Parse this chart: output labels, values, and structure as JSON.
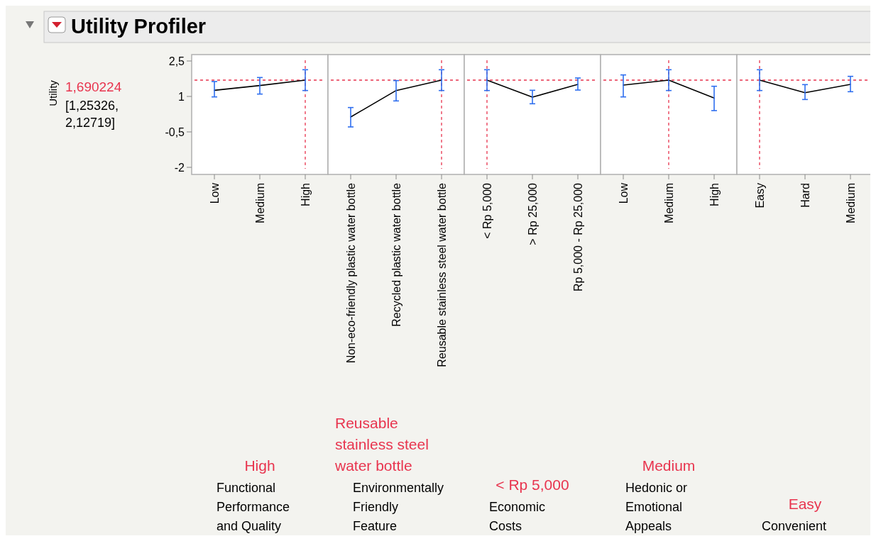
{
  "chart_data": [
    {
      "type": "line",
      "title": "Utility Profiler",
      "ylabel": "Utility",
      "xlabel": "Functional Performance and Quality",
      "annotations": [
        "[1,25326, 2,12719]"
      ],
      "categories": [
        "Low",
        "Medium",
        "High"
      ],
      "series": [
        {
          "color": "#000000",
          "values": [
            1.26,
            1.46,
            1.69
          ],
          "errors": [
            [
              0.98,
              1.63
            ],
            [
              1.1,
              1.8
            ],
            [
              1.25,
              2.13
            ]
          ]
        }
      ],
      "ylim": [
        -2.3,
        2.77
      ],
      "yticks": [
        {
          "value": 2.5,
          "label": "2,5"
        },
        1,
        {
          "value": -0.5,
          "label": "-0,5"
        },
        -2
      ],
      "marker": "none",
      "ref_lines": [
        {
          "axis": "y",
          "value": 1.690224,
          "label": "1,690224",
          "color": "#e8344e",
          "line_style": "dashed"
        },
        {
          "axis": "x",
          "value": "High",
          "label": "High",
          "color": "#e8344e",
          "line_style": "dashed"
        }
      ]
    },
    {
      "type": "line",
      "xlabel": "Environmentally Friendly Feature",
      "categories": [
        "Non-eco-friendly plastic water bottle",
        "Recycled plastic water bottle",
        "Reusable stainless steel water bottle"
      ],
      "series": [
        {
          "color": "#000000",
          "values": [
            0.13,
            1.25,
            1.69
          ],
          "errors": [
            [
              -0.29,
              0.53
            ],
            [
              0.81,
              1.67
            ],
            [
              1.25,
              2.13
            ]
          ]
        }
      ],
      "ylim": [
        -2.3,
        2.77
      ],
      "tick_labels": "x",
      "marker": "none",
      "ref_lines": [
        {
          "axis": "y",
          "value": 1.690224,
          "color": "#e8344e",
          "line_style": "dashed"
        },
        {
          "axis": "x",
          "value": "Reusable stainless steel water bottle",
          "label": "Reusable stainless steel water bottle",
          "color": "#e8344e",
          "line_style": "dashed"
        }
      ]
    },
    {
      "type": "line",
      "xlabel": "Economic Costs",
      "categories": [
        "< Rp 5,000",
        "> Rp 25,000",
        "Rp 5,000 - Rp 25,000"
      ],
      "series": [
        {
          "color": "#000000",
          "values": [
            1.69,
            0.97,
            1.51
          ],
          "errors": [
            [
              1.25,
              2.13
            ],
            [
              0.69,
              1.26
            ],
            [
              1.27,
              1.78
            ]
          ]
        }
      ],
      "ylim": [
        -2.3,
        2.77
      ],
      "tick_labels": "x",
      "marker": "none",
      "ref_lines": [
        {
          "axis": "y",
          "value": 1.690224,
          "color": "#e8344e",
          "line_style": "dashed"
        },
        {
          "axis": "x",
          "value": "< Rp 5,000",
          "label": "< Rp 5,000",
          "color": "#e8344e",
          "line_style": "dashed"
        }
      ]
    },
    {
      "type": "line",
      "xlabel": "Hedonic or Emotional Appeals",
      "categories": [
        "Low",
        "Medium",
        "High"
      ],
      "series": [
        {
          "color": "#000000",
          "values": [
            1.48,
            1.69,
            0.93
          ],
          "errors": [
            [
              0.98,
              1.91
            ],
            [
              1.25,
              2.13
            ],
            [
              0.4,
              1.43
            ]
          ]
        }
      ],
      "ylim": [
        -2.3,
        2.77
      ],
      "tick_labels": "x",
      "marker": "none",
      "ref_lines": [
        {
          "axis": "y",
          "value": 1.690224,
          "color": "#e8344e",
          "line_style": "dashed"
        },
        {
          "axis": "x",
          "value": "Medium",
          "label": "Medium",
          "color": "#e8344e",
          "line_style": "dashed"
        }
      ]
    },
    {
      "type": "line",
      "xlabel": "Convenient",
      "categories": [
        "Easy",
        "Hard",
        "Medium"
      ],
      "series": [
        {
          "color": "#000000",
          "values": [
            1.69,
            1.16,
            1.51
          ],
          "errors": [
            [
              1.25,
              2.13
            ],
            [
              0.87,
              1.5
            ],
            [
              1.2,
              1.85
            ]
          ]
        }
      ],
      "ylim": [
        -2.3,
        2.77
      ],
      "tick_labels": "x",
      "marker": "none",
      "ref_lines": [
        {
          "axis": "y",
          "value": 1.690224,
          "color": "#e8344e",
          "line_style": "dashed"
        },
        {
          "axis": "x",
          "value": "Easy",
          "label": "Easy",
          "color": "#e8344e",
          "line_style": "dashed"
        }
      ]
    }
  ]
}
